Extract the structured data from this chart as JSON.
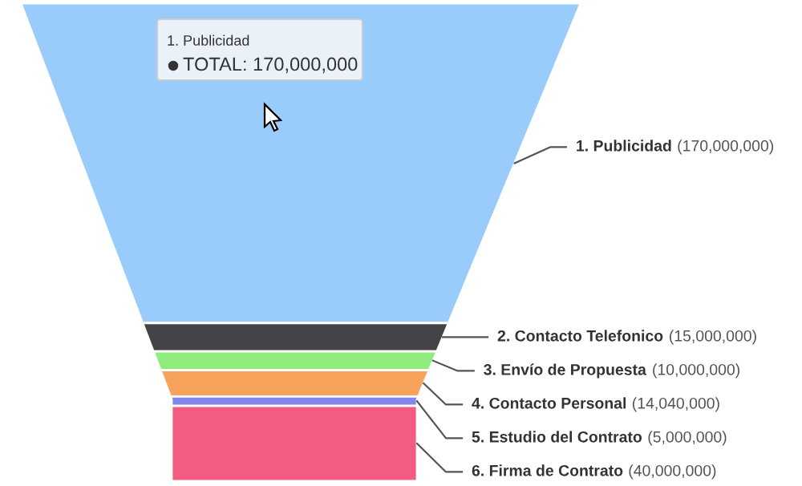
{
  "chart_data": {
    "type": "other",
    "categories": [
      "1. Publicidad",
      "2. Contacto Telefonico",
      "3. Envío de Propuesta",
      "4. Contacto Personal",
      "5. Estudio del Contrato",
      "6. Firma de Contrato"
    ],
    "values": [
      170000000,
      15000000,
      10000000,
      14040000,
      5000000,
      40000000
    ],
    "colors": [
      "#99ccfa",
      "#434348",
      "#90ed7d",
      "#f7a35c",
      "#8085e9",
      "#f15c80"
    ],
    "value_labels": [
      "(170,000,000)",
      "(15,000,000)",
      "(10,000,000)",
      "(14,040,000)",
      "(5,000,000)",
      "(40,000,000)"
    ],
    "annotations": [
      "1. Publicidad",
      "TOTAL: 170,000,000"
    ]
  }
}
